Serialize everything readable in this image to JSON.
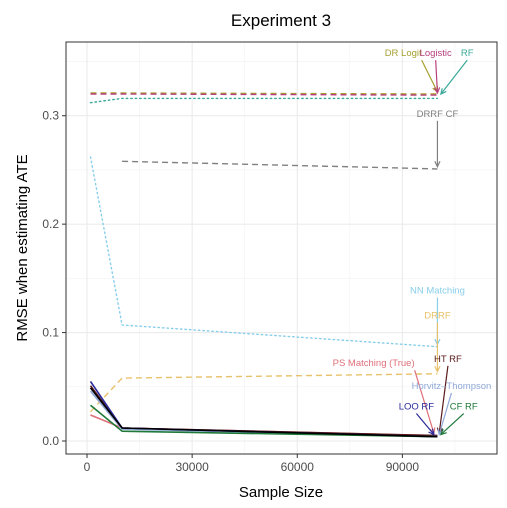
{
  "chart_data": {
    "type": "line",
    "title": "Experiment 3",
    "xlabel": "Sample Size",
    "ylabel": "RMSE when estimating ATE",
    "xlim": [
      -6000,
      117000
    ],
    "ylim": [
      -0.012,
      0.368
    ],
    "x_ticks": [
      0,
      30000,
      60000,
      90000
    ],
    "x_tick_labels": [
      "0",
      "30000",
      "60000",
      "90000"
    ],
    "y_ticks": [
      0.0,
      0.1,
      0.2,
      0.3
    ],
    "y_tick_labels": [
      "0.0",
      "0.1",
      "0.2",
      "0.3"
    ],
    "grid": true,
    "legend": "none",
    "series": [
      {
        "name": "DR Logit",
        "color": "#a6a030",
        "dash": "dashed",
        "x": [
          1000,
          10000,
          100000
        ],
        "y": [
          0.321,
          0.321,
          0.32
        ]
      },
      {
        "name": "Logistic",
        "color": "#b8407e",
        "dash": "dashed",
        "x": [
          1000,
          10000,
          100000
        ],
        "y": [
          0.32,
          0.32,
          0.319
        ]
      },
      {
        "name": "RF",
        "color": "#3aa89a",
        "dash": "dotted",
        "x": [
          1000,
          10000,
          100000
        ],
        "y": [
          0.312,
          0.316,
          0.316
        ]
      },
      {
        "name": "DRRF CF",
        "color": "#808080",
        "dash": "dashed",
        "x": [
          10000,
          100000
        ],
        "y": [
          0.258,
          0.251
        ]
      },
      {
        "name": "NN Matching",
        "color": "#87ceeb",
        "dash": "dotted",
        "x": [
          1000,
          10000,
          100000
        ],
        "y": [
          0.262,
          0.107,
          0.087
        ]
      },
      {
        "name": "DRRF",
        "color": "#e8c26a",
        "dash": "dashed",
        "x": [
          1000,
          10000,
          100000
        ],
        "y": [
          0.027,
          0.058,
          0.062
        ]
      },
      {
        "name": "PS Matching (True)",
        "color": "#e0707a",
        "dash": "solid",
        "x": [
          1000,
          10000,
          100000
        ],
        "y": [
          0.024,
          0.012,
          0.005
        ]
      },
      {
        "name": "HT RF",
        "color": "#5a1a1a",
        "dash": "solid",
        "x": [
          1000,
          10000,
          100000
        ],
        "y": [
          0.051,
          0.012,
          0.005
        ]
      },
      {
        "name": "Horvitz–Thompson",
        "color": "#8ea8d8",
        "dash": "solid",
        "x": [
          1000,
          10000,
          100000
        ],
        "y": [
          0.046,
          0.011,
          0.004
        ]
      },
      {
        "name": "LOO RF",
        "color": "#2a2a9a",
        "dash": "solid",
        "x": [
          1000,
          10000,
          100000
        ],
        "y": [
          0.055,
          0.012,
          0.004
        ]
      },
      {
        "name": "CF RF",
        "color": "#1f7a3a",
        "dash": "solid",
        "x": [
          1000,
          10000,
          100000
        ],
        "y": [
          0.033,
          0.009,
          0.004
        ]
      },
      {
        "name": "",
        "color": "#000000",
        "dash": "solid",
        "x": [
          1000,
          10000,
          100000
        ],
        "y": [
          0.049,
          0.012,
          0.004
        ]
      }
    ],
    "annotations": [
      {
        "text": "DR Logit",
        "color": "#a6a030",
        "x": 95500,
        "y": 0.355,
        "anchor": "end",
        "arrow_to": [
          100000,
          0.322
        ]
      },
      {
        "text": "Logistic",
        "color": "#b8407e",
        "x": 99500,
        "y": 0.355,
        "anchor": "middle",
        "arrow_to": [
          100000,
          0.321
        ]
      },
      {
        "text": "RF",
        "color": "#3aa89a",
        "x": 108500,
        "y": 0.355,
        "anchor": "middle",
        "arrow_to": [
          101000,
          0.32
        ]
      },
      {
        "text": "DRRF CF",
        "color": "#808080",
        "x": 100000,
        "y": 0.299,
        "anchor": "middle",
        "arrow_to": [
          100000,
          0.253
        ]
      },
      {
        "text": "NN Matching",
        "color": "#87ceeb",
        "x": 100000,
        "y": 0.136,
        "anchor": "middle",
        "arrow_to": [
          100000,
          0.089
        ]
      },
      {
        "text": "DRRF",
        "color": "#e8c26a",
        "x": 100000,
        "y": 0.113,
        "anchor": "middle",
        "arrow_to": [
          100000,
          0.064
        ]
      },
      {
        "text": "PS Matching (True)",
        "color": "#e0707a",
        "x": 93500,
        "y": 0.069,
        "anchor": "end",
        "arrow_to": [
          99000,
          0.007
        ]
      },
      {
        "text": "HT RF",
        "color": "#5a1a1a",
        "x": 103000,
        "y": 0.073,
        "anchor": "middle",
        "arrow_to": [
          100500,
          0.007
        ]
      },
      {
        "text": "Horvitz–Thompson",
        "color": "#8ea8d8",
        "x": 104000,
        "y": 0.048,
        "anchor": "middle",
        "arrow_to": [
          100500,
          0.006
        ]
      },
      {
        "text": "LOO RF",
        "color": "#2a2a9a",
        "x": 94000,
        "y": 0.029,
        "anchor": "middle",
        "arrow_to": [
          99000,
          0.006
        ]
      },
      {
        "text": "CF RF",
        "color": "#1f7a3a",
        "x": 107500,
        "y": 0.029,
        "anchor": "middle",
        "arrow_to": [
          101000,
          0.006
        ]
      }
    ]
  }
}
